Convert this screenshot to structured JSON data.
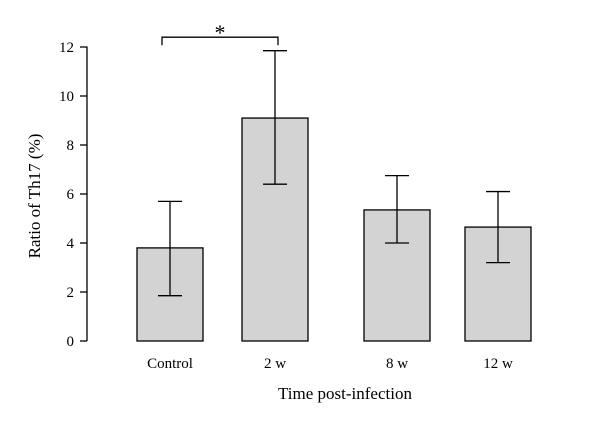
{
  "chart_data": {
    "type": "bar",
    "categories": [
      "Control",
      "2 w",
      "8 w",
      "12 w"
    ],
    "values": [
      3.8,
      9.1,
      5.35,
      4.65
    ],
    "error_low": [
      1.85,
      6.4,
      4.0,
      3.2
    ],
    "error_high": [
      5.7,
      11.85,
      6.75,
      6.1
    ],
    "xlabel": "Time post-infection",
    "ylabel": "Ratio of Th17 (%)",
    "ylim": [
      0,
      12
    ],
    "yticks": [
      "0",
      "2",
      "4",
      "6",
      "8",
      "10",
      "12"
    ],
    "ytick_values": [
      0,
      2,
      4,
      6,
      8,
      10,
      12
    ],
    "bar_color": "#d3d3d3",
    "grid": false,
    "annotation": {
      "text": "*",
      "from_category": 0,
      "to_category": 1,
      "y": 12.4
    }
  }
}
